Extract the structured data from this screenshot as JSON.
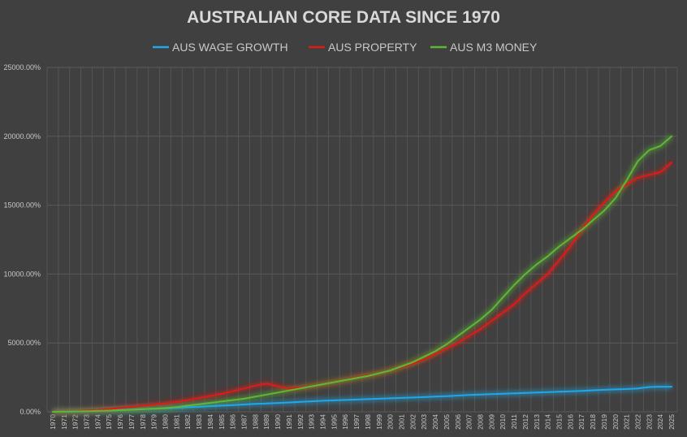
{
  "chart_data": {
    "type": "line",
    "title": "AUSTRALIAN CORE DATA SINCE 1970",
    "xlabel": "",
    "ylabel": "",
    "ylim": [
      0,
      25000
    ],
    "y_ticks": [
      "0.00%",
      "5000.00%",
      "10000.00%",
      "15000.00%",
      "20000.00%",
      "25000.00%"
    ],
    "y_tick_values": [
      0,
      5000,
      10000,
      15000,
      20000,
      25000
    ],
    "grid": true,
    "legend_position": "top",
    "background_color": "#404040",
    "categories": [
      "1970",
      "1971",
      "1972",
      "1973",
      "1974",
      "1975",
      "1976",
      "1977",
      "1978",
      "1979",
      "1980",
      "1981",
      "1982",
      "1983",
      "1984",
      "1985",
      "1986",
      "1987",
      "1988",
      "1989",
      "1990",
      "1991",
      "1992",
      "1993",
      "1994",
      "1995",
      "1996",
      "1997",
      "1998",
      "1999",
      "2000",
      "2001",
      "2002",
      "2003",
      "2004",
      "2005",
      "2006",
      "2007",
      "2008",
      "2009",
      "2010",
      "2011",
      "2012",
      "2013",
      "2014",
      "2015",
      "2016",
      "2017",
      "2018",
      "2019",
      "2020",
      "2021",
      "2022",
      "2023",
      "2024",
      "2025"
    ],
    "series": [
      {
        "name": "AUS WAGE GROWTH",
        "color": "#1fa7e6",
        "values": [
          0,
          10,
          25,
          45,
          70,
          100,
          130,
          160,
          190,
          220,
          250,
          290,
          330,
          370,
          410,
          450,
          490,
          530,
          570,
          600,
          640,
          680,
          720,
          760,
          800,
          830,
          860,
          890,
          920,
          950,
          980,
          1010,
          1040,
          1070,
          1100,
          1140,
          1180,
          1220,
          1250,
          1280,
          1310,
          1340,
          1370,
          1400,
          1430,
          1460,
          1490,
          1520,
          1560,
          1600,
          1630,
          1650,
          1700,
          1800,
          1820,
          1820
        ]
      },
      {
        "name": "AUS PROPERTY",
        "color": "#e01b14",
        "values": [
          0,
          20,
          50,
          90,
          140,
          200,
          280,
          360,
          440,
          520,
          600,
          720,
          850,
          1000,
          1150,
          1300,
          1500,
          1700,
          1900,
          2050,
          1850,
          1700,
          1750,
          1850,
          2000,
          2150,
          2300,
          2500,
          2650,
          2800,
          3000,
          3250,
          3500,
          3800,
          4200,
          4600,
          5000,
          5500,
          6000,
          6600,
          7200,
          7800,
          8600,
          9300,
          10000,
          11000,
          12000,
          13200,
          14300,
          15200,
          16000,
          16500,
          17000,
          17200,
          17400,
          18100
        ]
      },
      {
        "name": "AUS M3 MONEY",
        "color": "#5fb832",
        "values": [
          0,
          15,
          30,
          50,
          70,
          90,
          120,
          150,
          190,
          230,
          270,
          350,
          450,
          550,
          650,
          750,
          850,
          950,
          1100,
          1250,
          1400,
          1550,
          1700,
          1850,
          2000,
          2150,
          2300,
          2450,
          2600,
          2800,
          3000,
          3300,
          3600,
          4000,
          4400,
          4900,
          5500,
          6100,
          6700,
          7400,
          8300,
          9200,
          10000,
          10700,
          11300,
          12000,
          12600,
          13200,
          13900,
          14600,
          15500,
          16800,
          18200,
          19000,
          19300,
          20000
        ]
      }
    ]
  }
}
